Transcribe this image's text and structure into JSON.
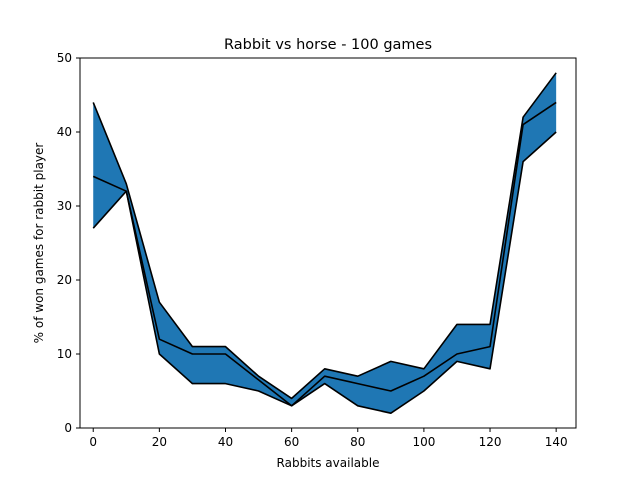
{
  "chart_data": {
    "type": "area",
    "title": "Rabbit vs horse  - 100 games",
    "xlabel": "Rabbits available",
    "ylabel": "% of won games for rabbit player",
    "xlim": [
      -4,
      146
    ],
    "ylim": [
      0,
      50
    ],
    "xticks": [
      "0",
      "20",
      "40",
      "60",
      "80",
      "100",
      "120",
      "140"
    ],
    "yticks": [
      "0",
      "10",
      "20",
      "30",
      "40",
      "50"
    ],
    "grid": false,
    "fill_color": "#1f77b4",
    "line_color": "#000000",
    "x": [
      0,
      10,
      20,
      30,
      40,
      50,
      60,
      70,
      80,
      90,
      100,
      110,
      120,
      130,
      140
    ],
    "series": [
      {
        "values": [
          27,
          32,
          10,
          6,
          6,
          5,
          3,
          6,
          3,
          2,
          5,
          9,
          8,
          36,
          40
        ]
      },
      {
        "values": [
          34,
          32,
          12,
          10,
          10,
          6.5,
          3,
          7,
          6,
          5,
          7,
          10,
          11,
          41,
          44
        ]
      },
      {
        "values": [
          44,
          33,
          17,
          11,
          11,
          7,
          4,
          8,
          7,
          9,
          8,
          14,
          14,
          42,
          48
        ]
      }
    ]
  }
}
